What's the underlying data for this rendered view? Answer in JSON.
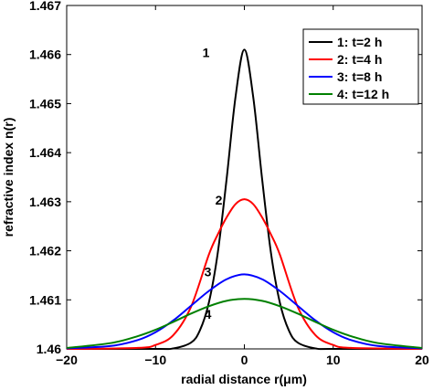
{
  "chart_data": {
    "type": "line",
    "xlabel": "radial distance r(μm)",
    "ylabel": "refractive index n(r)",
    "xlim": [
      -20,
      20
    ],
    "ylim": [
      1.46,
      1.467
    ],
    "x_ticks": [
      -20,
      -10,
      0,
      10,
      20
    ],
    "x_tick_labels": [
      "−20",
      "−10",
      "0",
      "10",
      "20"
    ],
    "y_ticks": [
      1.46,
      1.461,
      1.462,
      1.463,
      1.464,
      1.465,
      1.466,
      1.467
    ],
    "y_tick_labels": [
      "1.46",
      "1.461",
      "1.462",
      "1.463",
      "1.464",
      "1.465",
      "1.466",
      "1.467"
    ],
    "grid": false,
    "legend_position": "top-right",
    "series": [
      {
        "name": "1: t=2 h",
        "color": "#000000",
        "label": "1",
        "x": [
          -20,
          -10,
          -8,
          -6,
          -5,
          -4,
          -3,
          -2,
          -1,
          0,
          1,
          2,
          3,
          4,
          5,
          6,
          8,
          10,
          20
        ],
        "y": [
          1.46,
          1.46,
          1.46001,
          1.46013,
          1.46038,
          1.46094,
          1.46195,
          1.46346,
          1.46513,
          1.4661,
          1.46513,
          1.46346,
          1.46195,
          1.46094,
          1.46038,
          1.46013,
          1.46001,
          1.46,
          1.46
        ]
      },
      {
        "name": "2: t=4 h",
        "color": "#ff0000",
        "label": "2",
        "x": [
          -20,
          -12,
          -10,
          -8,
          -6,
          -4,
          -3,
          -2,
          -1,
          0,
          1,
          2,
          3,
          4,
          6,
          8,
          10,
          12,
          20
        ],
        "y": [
          1.46,
          1.46002,
          1.46008,
          1.46028,
          1.46086,
          1.46192,
          1.46233,
          1.46268,
          1.46295,
          1.46305,
          1.46295,
          1.46268,
          1.46233,
          1.46192,
          1.46086,
          1.46028,
          1.46008,
          1.46002,
          1.46
        ]
      },
      {
        "name": "3: t=8 h",
        "color": "#0000ff",
        "label": "3",
        "x": [
          -20,
          -15,
          -12,
          -10,
          -8,
          -6,
          -4,
          -2,
          0,
          2,
          4,
          6,
          8,
          10,
          12,
          15,
          20
        ],
        "y": [
          1.46001,
          1.46006,
          1.46018,
          1.46034,
          1.46058,
          1.46088,
          1.46118,
          1.46142,
          1.46152,
          1.46142,
          1.46118,
          1.46088,
          1.46058,
          1.46034,
          1.46018,
          1.46006,
          1.46001
        ]
      },
      {
        "name": "4: t=12 h",
        "color": "#008000",
        "label": "4",
        "x": [
          -20,
          -15,
          -12,
          -10,
          -8,
          -6,
          -4,
          -2,
          0,
          2,
          4,
          6,
          8,
          10,
          12,
          15,
          20
        ],
        "y": [
          1.46002,
          1.46012,
          1.46026,
          1.46039,
          1.46055,
          1.46072,
          1.46087,
          1.46098,
          1.46102,
          1.46098,
          1.46087,
          1.46072,
          1.46055,
          1.46039,
          1.46026,
          1.46012,
          1.46002
        ]
      }
    ]
  }
}
